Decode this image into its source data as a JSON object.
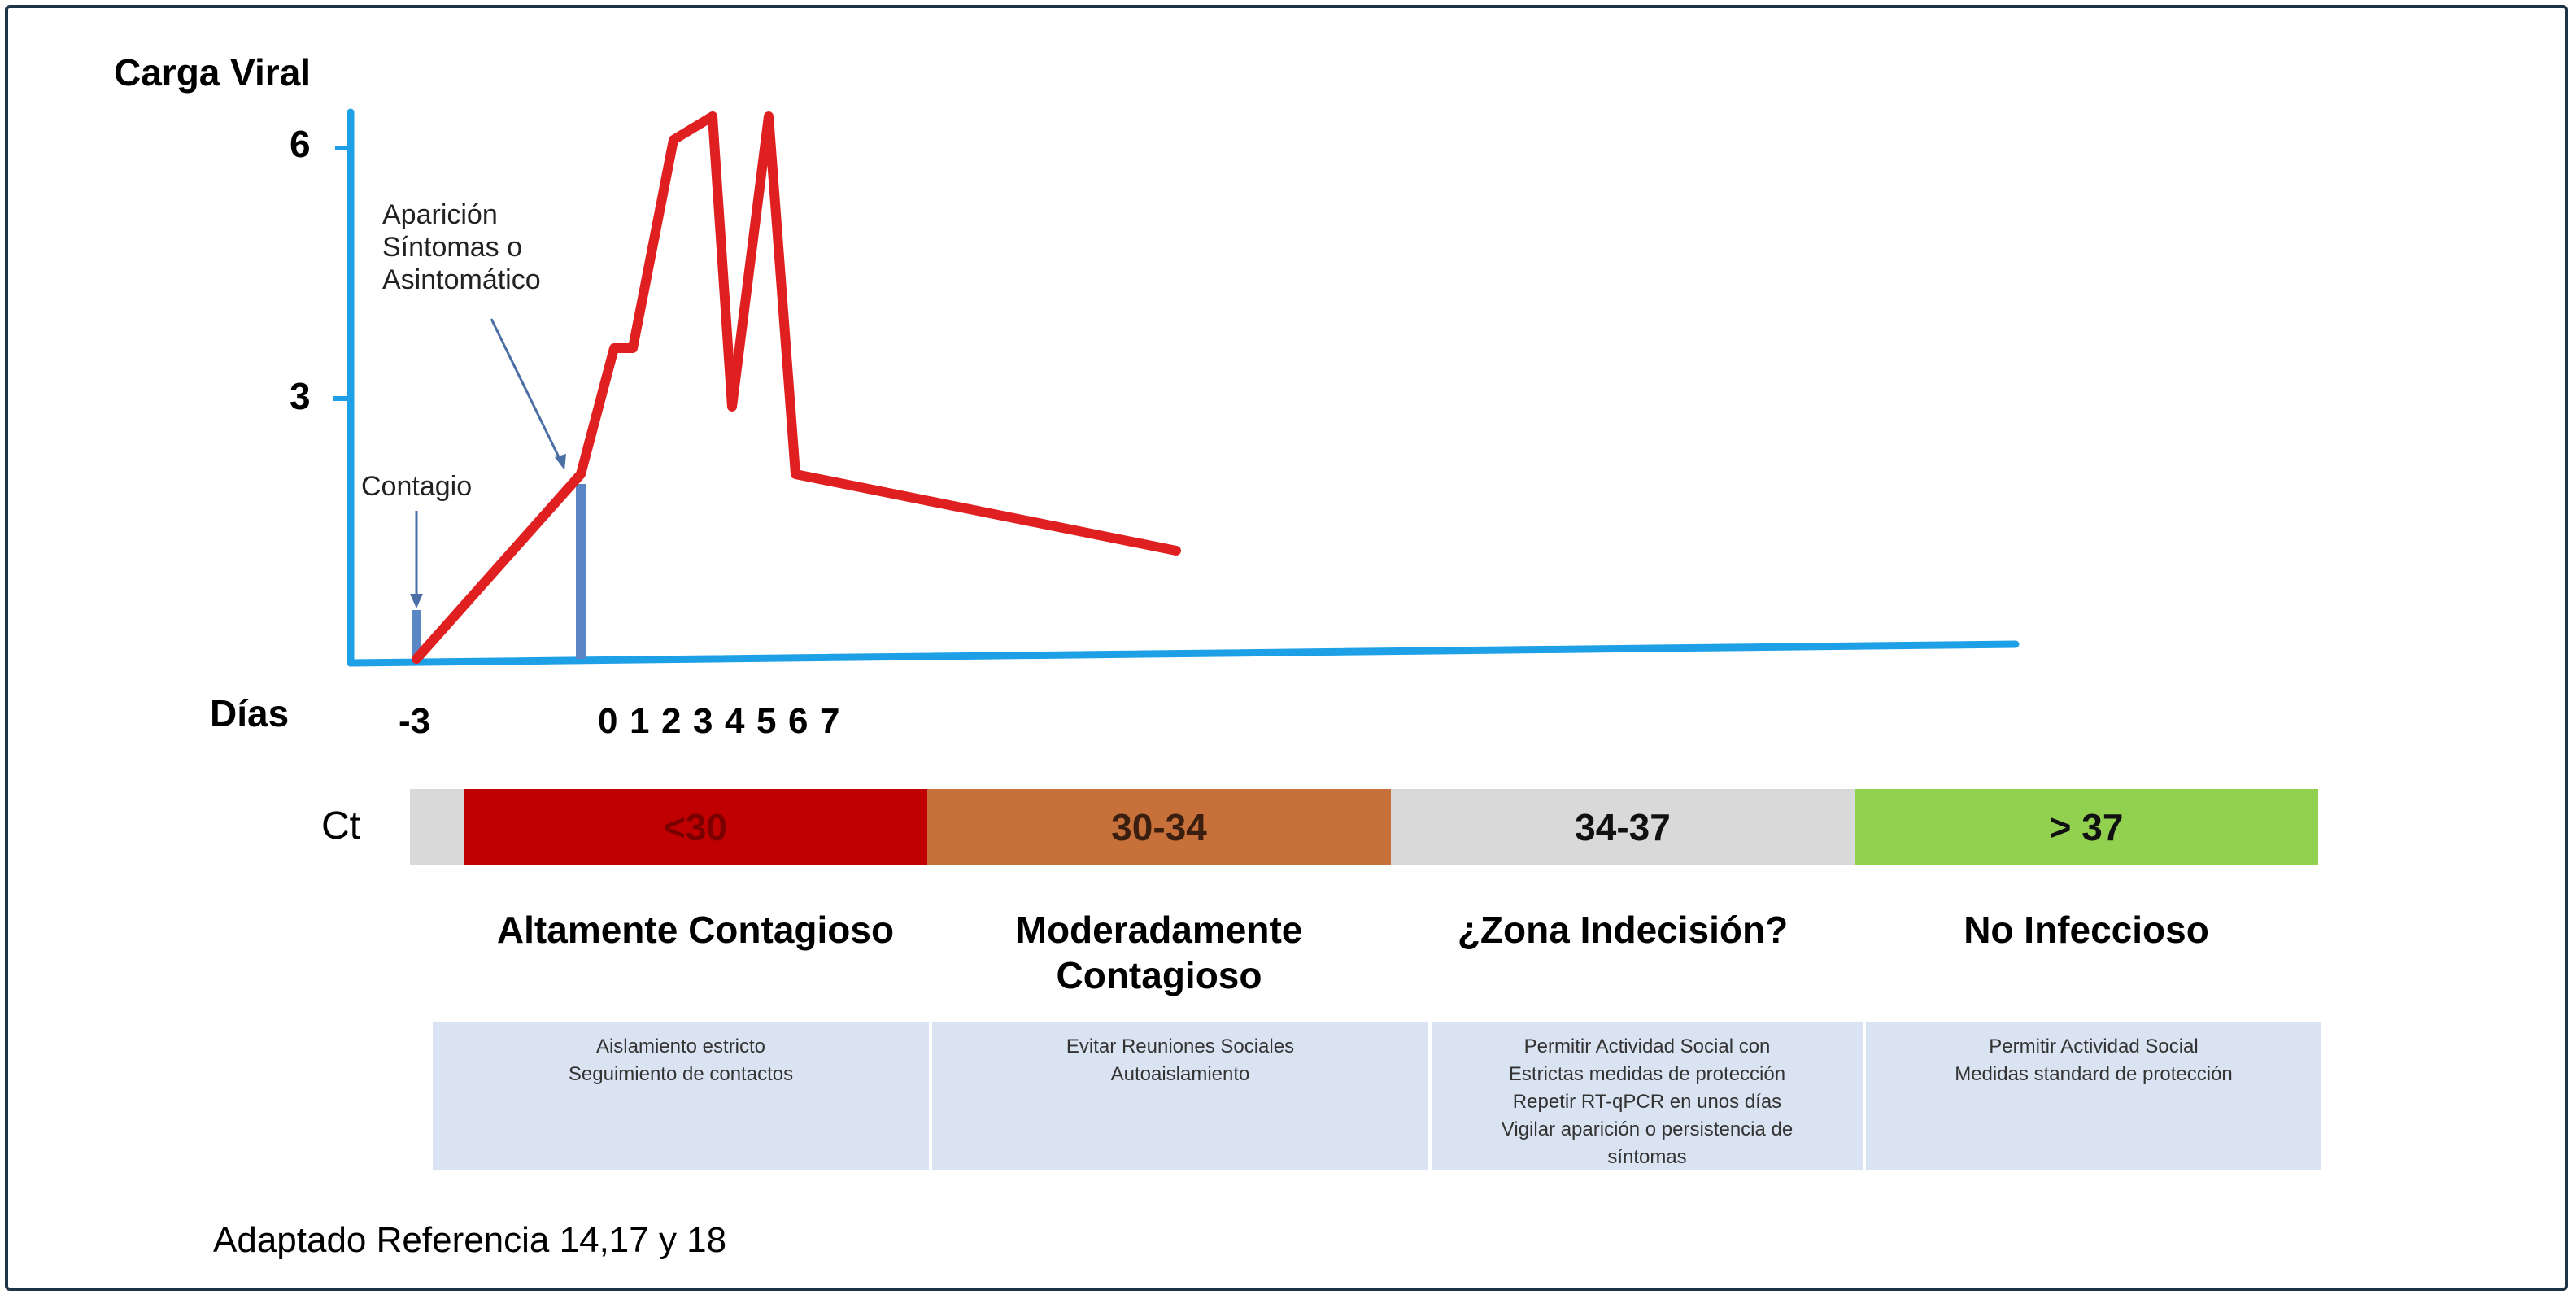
{
  "chart": {
    "y_axis_label": "Carga Viral",
    "x_axis_label": "Días",
    "y_ticks": [
      "6",
      "3"
    ],
    "annotations": {
      "onset": [
        "Aparición",
        "Síntomas o",
        "Asintomático"
      ],
      "contagion": "Contagio"
    },
    "day_ticks": [
      "-3",
      "0",
      "1",
      "2",
      "3",
      "4",
      "5",
      "6",
      "7"
    ],
    "colors": {
      "axis": "#1ea0e6",
      "curve": "#e02020",
      "marker": "#5b86c5"
    }
  },
  "ct_scale": {
    "label": "Ct",
    "bars": [
      {
        "label": "<30",
        "color": "#c00000"
      },
      {
        "label": "30-34",
        "color": "#c8703a"
      },
      {
        "label": "34-37",
        "color": "#d9d9d9"
      },
      {
        "label": "> 37",
        "color": "#92d050"
      }
    ]
  },
  "zones": [
    {
      "title": [
        "Altamente Contagioso"
      ],
      "actions": [
        "Aislamiento estricto",
        "Seguimiento de contactos"
      ]
    },
    {
      "title": [
        "Moderadamente",
        "Contagioso"
      ],
      "actions": [
        "Evitar Reuniones Sociales",
        "Autoaislamiento"
      ]
    },
    {
      "title": [
        "¿Zona Indecisión?"
      ],
      "actions": [
        "Permitir Actividad Social con",
        "Estrictas medidas de protección",
        "Repetir RT-qPCR en unos días",
        "Vigilar aparición o persistencia de",
        "síntomas"
      ]
    },
    {
      "title": [
        "No Infeccioso"
      ],
      "actions": [
        "Permitir Actividad Social",
        "Medidas standard de protección"
      ]
    }
  ],
  "footer": "Adaptado Referencia 14,17 y 18"
}
